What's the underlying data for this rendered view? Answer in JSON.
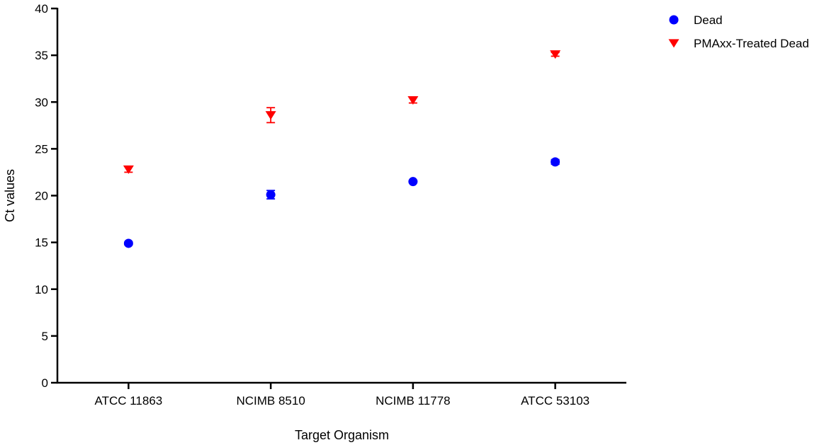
{
  "chart_data": {
    "type": "scatter",
    "title": "",
    "xlabel": "Target Organism",
    "ylabel": "Ct values",
    "categories": [
      "ATCC 11863",
      "NCIMB 8510",
      "NCIMB 11778",
      "ATCC 53103"
    ],
    "ylim": [
      0,
      40
    ],
    "yticks": [
      0,
      5,
      10,
      15,
      20,
      25,
      30,
      35,
      40
    ],
    "grid": false,
    "legend_position": "top-right",
    "series": [
      {
        "name": "Dead",
        "marker": "circle",
        "color": "#0000ff",
        "values": [
          14.9,
          20.1,
          21.5,
          23.6
        ],
        "errors": [
          0.15,
          0.45,
          0.1,
          0.25
        ]
      },
      {
        "name": "PMAxx-Treated Dead",
        "marker": "triangle-down",
        "color": "#ff0000",
        "values": [
          22.8,
          28.6,
          30.2,
          35.1
        ],
        "errors": [
          0.3,
          0.8,
          0.3,
          0.2
        ]
      }
    ]
  }
}
